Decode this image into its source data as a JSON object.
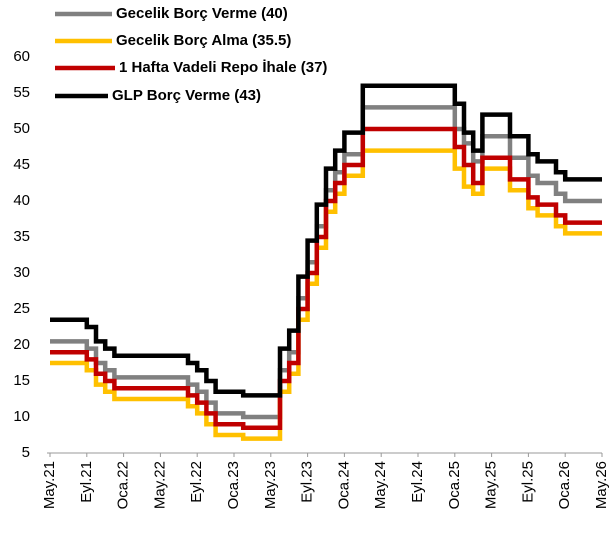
{
  "chart_data": {
    "type": "step-line",
    "categories": [
      "May.21",
      null,
      null,
      null,
      "Eyl.21",
      null,
      null,
      null,
      "Oca.22",
      null,
      null,
      null,
      "May.22",
      null,
      null,
      null,
      "Eyl.22",
      null,
      null,
      null,
      "Oca.23",
      null,
      null,
      null,
      "May.23",
      null,
      null,
      null,
      "Eyl.23",
      null,
      null,
      null,
      "Oca.24",
      null,
      null,
      null,
      "May.24",
      null,
      null,
      null,
      "Eyl.24",
      null,
      null,
      null,
      "Oca.25",
      null,
      null,
      null,
      "May.25",
      null,
      null,
      null,
      "Eyl.25",
      null,
      null,
      null,
      "Oca.26",
      null,
      null,
      null,
      "May.26"
    ],
    "series": [
      {
        "name": "Gecelik Borç Verme (40)",
        "color": "#808080",
        "values": [
          20.5,
          20.5,
          20.5,
          20.5,
          19.5,
          17.5,
          16.5,
          15.5,
          15.5,
          15.5,
          15.5,
          15.5,
          15.5,
          15.5,
          15.5,
          14.5,
          13.5,
          12,
          10.5,
          10.5,
          10.5,
          10,
          10,
          10,
          10,
          16.5,
          19,
          26.5,
          31.5,
          36.5,
          41.5,
          44,
          46.5,
          46.5,
          53,
          53,
          53,
          53,
          53,
          53,
          53,
          53,
          53,
          53,
          50,
          48,
          45.5,
          49,
          49,
          49,
          46,
          46,
          43.5,
          42.5,
          42.5,
          41,
          40,
          40,
          40,
          40,
          40
        ]
      },
      {
        "name": "Gecelik Borç Alma (35.5)",
        "color": "#ffc000",
        "values": [
          17.5,
          17.5,
          17.5,
          17.5,
          16.5,
          14.5,
          13.5,
          12.5,
          12.5,
          12.5,
          12.5,
          12.5,
          12.5,
          12.5,
          12.5,
          11.5,
          10.5,
          9,
          7.5,
          7.5,
          7.5,
          7,
          7,
          7,
          7,
          13.5,
          16,
          23.5,
          28.5,
          33.5,
          38.5,
          41,
          43.5,
          43.5,
          47,
          47,
          47,
          47,
          47,
          47,
          47,
          47,
          47,
          47,
          44.5,
          42,
          41,
          44.5,
          44.5,
          44.5,
          41.5,
          41.5,
          39,
          38,
          38,
          36.5,
          35.5,
          35.5,
          35.5,
          35.5,
          35.5
        ]
      },
      {
        "name": "1 Hafta Vadeli Repo İhale (37)",
        "color": "#c00000",
        "values": [
          19,
          19,
          19,
          19,
          18,
          16,
          15,
          14,
          14,
          14,
          14,
          14,
          14,
          14,
          14,
          13,
          12,
          10.5,
          9,
          9,
          9,
          8.5,
          8.5,
          8.5,
          8.5,
          15,
          17.5,
          25,
          30,
          35,
          40,
          42.5,
          45,
          45,
          50,
          50,
          50,
          50,
          50,
          50,
          50,
          50,
          50,
          50,
          47.5,
          45,
          42.5,
          46,
          46,
          46,
          43,
          43,
          40.5,
          39.5,
          39.5,
          38,
          37,
          37,
          37,
          37,
          37
        ]
      },
      {
        "name": "GLP Borç Verme (43)",
        "color": "#000000",
        "values": [
          23.5,
          23.5,
          23.5,
          23.5,
          22.5,
          20.5,
          19.5,
          18.5,
          18.5,
          18.5,
          18.5,
          18.5,
          18.5,
          18.5,
          18.5,
          17.5,
          16.5,
          15,
          13.5,
          13.5,
          13.5,
          13,
          13,
          13,
          13,
          19.5,
          22,
          29.5,
          34.5,
          39.5,
          44.5,
          47,
          49.5,
          49.5,
          56,
          56,
          56,
          56,
          56,
          56,
          56,
          56,
          56,
          56,
          53.5,
          49.5,
          47,
          52,
          52,
          52,
          49,
          49,
          46.5,
          45.5,
          45.5,
          44,
          43,
          43,
          43,
          43,
          43
        ]
      }
    ],
    "ylim": [
      5,
      60
    ],
    "yticks": [
      5,
      10,
      15,
      20,
      25,
      30,
      35,
      40,
      45,
      50,
      55,
      60
    ],
    "grid": false,
    "legend": "top-left"
  }
}
